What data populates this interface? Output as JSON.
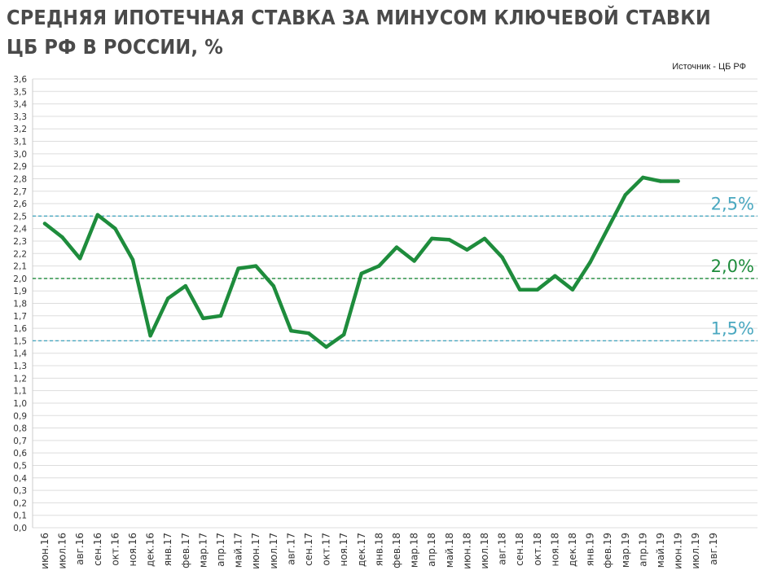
{
  "chart_data": {
    "type": "line",
    "title": "СРЕДНЯЯ ИПОТЕЧНАЯ СТАВКА ЗА МИНУСОМ КЛЮЧЕВОЙ СТАВКИ ЦБ РФ В РОССИИ, %",
    "source": "Источник  - ЦБ РФ",
    "categories": [
      "июн.16",
      "июл.16",
      "авг.16",
      "сен.16",
      "окт.16",
      "ноя.16",
      "дек.16",
      "янв.17",
      "фев.17",
      "мар.17",
      "апр.17",
      "май.17",
      "июн.17",
      "июл.17",
      "авг.17",
      "сен.17",
      "окт.17",
      "ноя.17",
      "дек.17",
      "янв.18",
      "фев.18",
      "мар.18",
      "апр.18",
      "май.18",
      "июн.18",
      "июл.18",
      "авг.18",
      "сен.18",
      "окт.18",
      "ноя.18",
      "дек.18",
      "янв.19",
      "фев.19",
      "мар.19",
      "апр.19",
      "май.19",
      "июн.19",
      "июл.19",
      "авг.19"
    ],
    "series": [
      {
        "color": "#1e8c3c",
        "values": [
          2.44,
          2.33,
          2.16,
          2.51,
          2.4,
          2.15,
          1.54,
          1.84,
          1.94,
          1.68,
          1.7,
          2.08,
          2.1,
          1.94,
          1.58,
          1.56,
          1.45,
          1.55,
          2.04,
          2.1,
          2.25,
          2.14,
          2.32,
          2.31,
          2.23,
          2.32,
          2.17,
          1.91,
          1.91,
          2.02,
          1.91,
          2.13,
          2.4,
          2.67,
          2.81,
          2.78,
          2.78,
          null,
          null
        ]
      }
    ],
    "y_ticks": [
      "0,0",
      "0,1",
      "0,2",
      "0,3",
      "0,4",
      "0,5",
      "0,6",
      "0,7",
      "0,8",
      "0,9",
      "1,0",
      "1,1",
      "1,2",
      "1,3",
      "1,4",
      "1,5",
      "1,6",
      "1,7",
      "1,8",
      "1,9",
      "2,0",
      "2,1",
      "2,2",
      "2,3",
      "2,4",
      "2,5",
      "2,6",
      "2,7",
      "2,8",
      "2,9",
      "3,0",
      "3,1",
      "3,2",
      "3,3",
      "3,4",
      "3,5",
      "3,6"
    ],
    "ylim": [
      0,
      3.6
    ],
    "grid": true,
    "reference_lines": [
      {
        "value": 2.5,
        "label": "2,5%",
        "color": "#4aa8c0"
      },
      {
        "value": 2.0,
        "label": "2,0%",
        "color": "#1e8c3c"
      },
      {
        "value": 1.5,
        "label": "1,5%",
        "color": "#4aa8c0"
      }
    ]
  }
}
